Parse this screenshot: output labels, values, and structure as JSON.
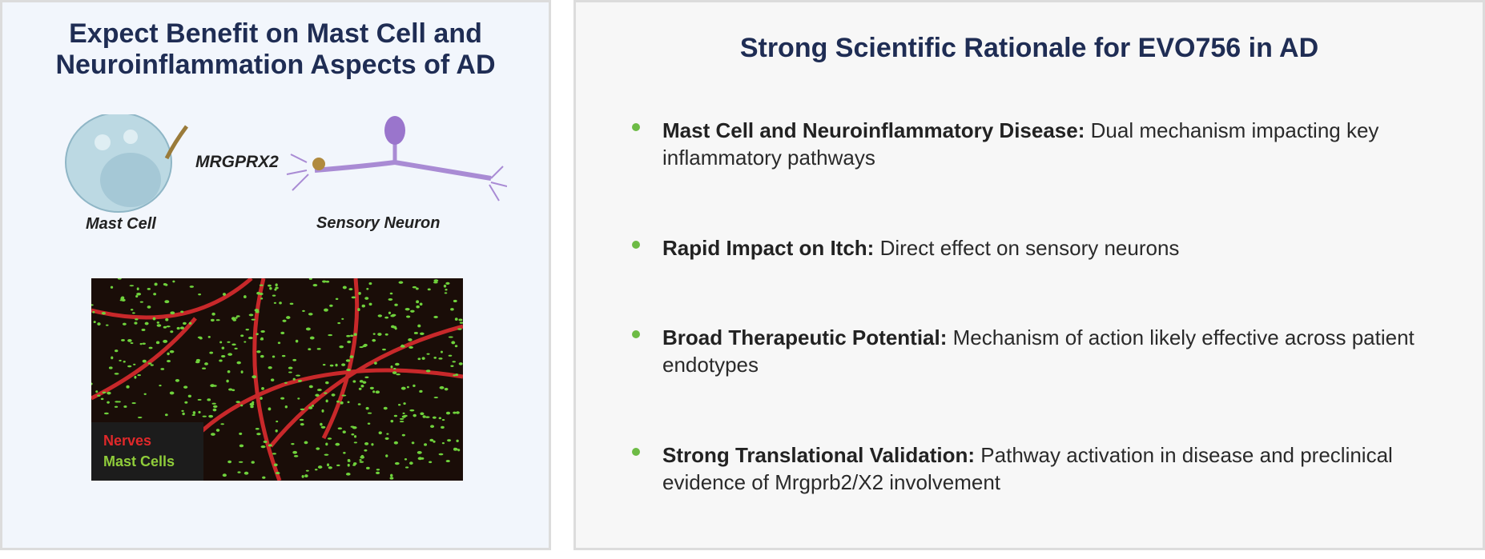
{
  "left": {
    "title": "Expect Benefit on Mast Cell and Neuroinflammation Aspects of AD",
    "receptor": "MRGPRX2",
    "mast_cell_label": "Mast Cell",
    "neuron_label": "Sensory Neuron",
    "legend": [
      "Nerves",
      "Mast Cells"
    ]
  },
  "right": {
    "title": "Strong Scientific Rationale for EVO756 in AD",
    "bullets": [
      {
        "label": "Mast Cell and Neuroinflammatory Disease:",
        "text": "Dual mechanism impacting key inflammatory pathways"
      },
      {
        "label": "Rapid Impact on Itch:",
        "text": "Direct effect on sensory neurons"
      },
      {
        "label": "Broad Therapeutic Potential:",
        "text": "Mechanism of action likely effective across patient endotypes"
      },
      {
        "label": "Strong Translational Validation:",
        "text": "Pathway activation in disease and preclinical evidence of Mrgprb2/X2 involvement"
      }
    ]
  }
}
